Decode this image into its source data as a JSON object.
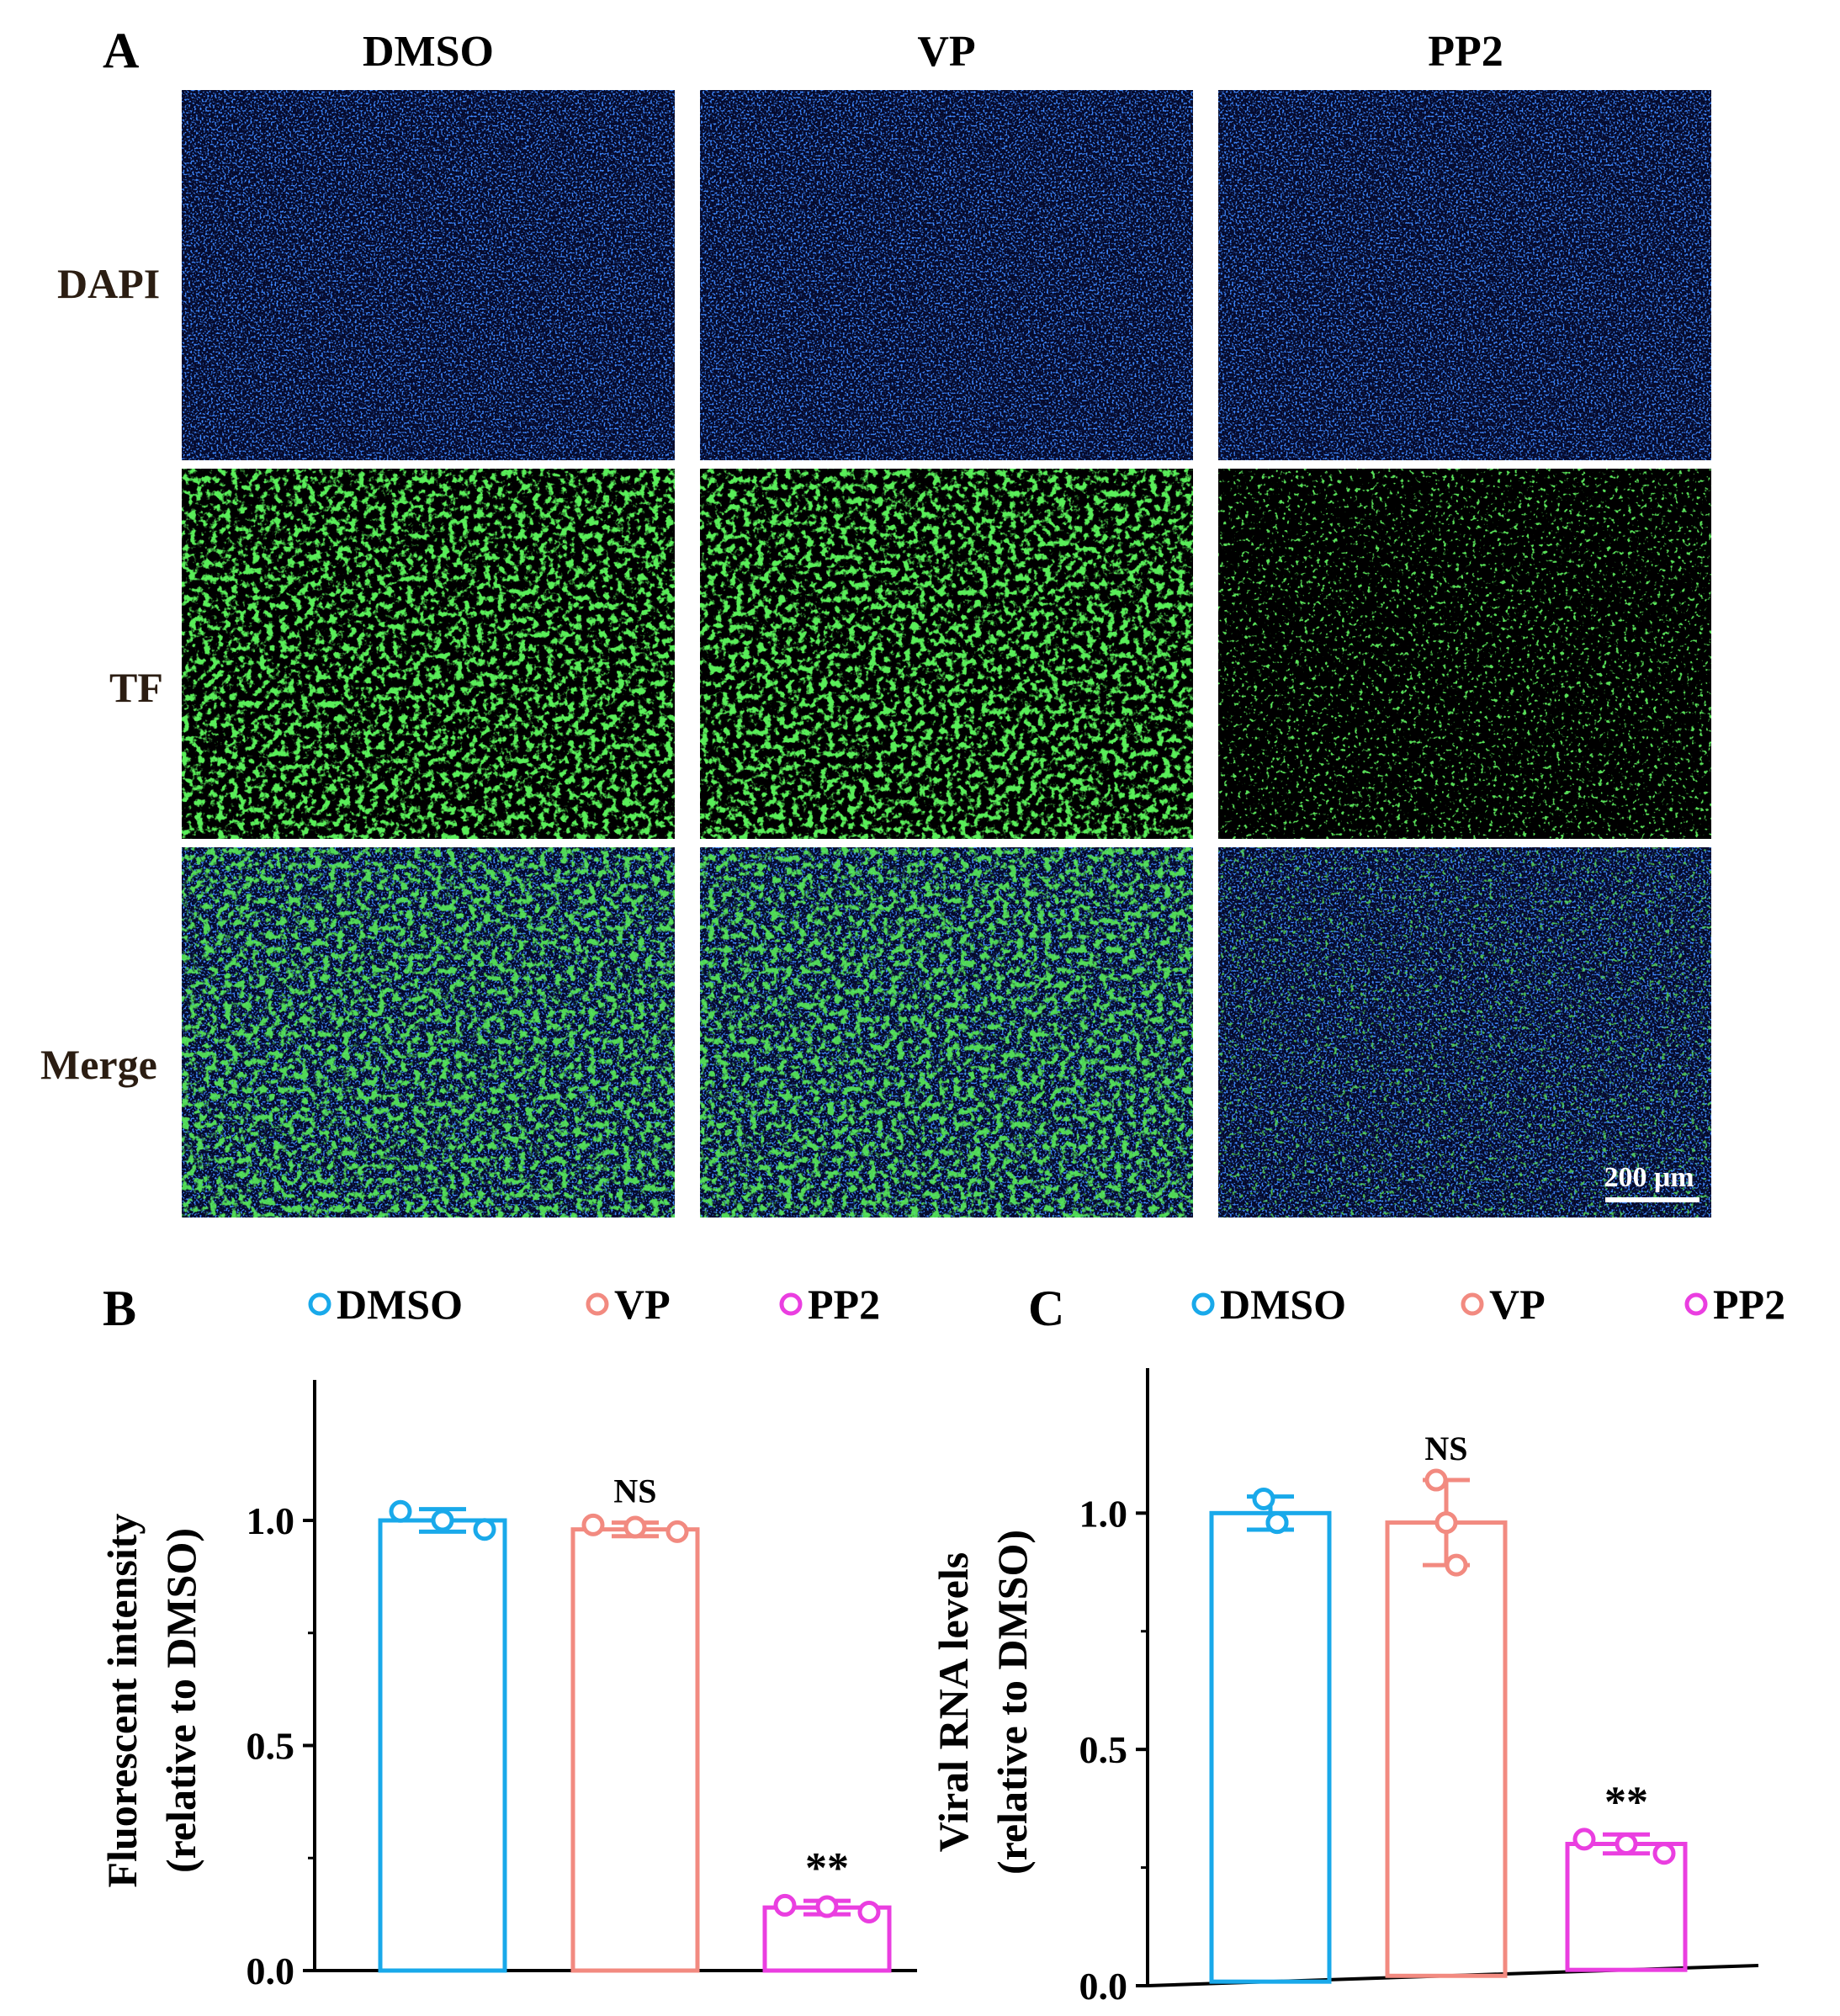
{
  "figure": {
    "panel_a": {
      "letter": "A",
      "columns": [
        "DMSO",
        "VP",
        "PP2"
      ],
      "rows": [
        "DAPI",
        "TF",
        "Merge"
      ],
      "scale_bar_label": "200 μm"
    },
    "colors": {
      "dmso": "#19a9ea",
      "vp": "#f28a80",
      "pp2": "#ea3ee0",
      "dapi_blue": "#1b3fd6",
      "tf_green": "#2fd32a"
    }
  },
  "chart_data": [
    {
      "panel": "B",
      "type": "bar",
      "categories": [
        "DMSO",
        "VP",
        "PP2"
      ],
      "values": [
        1.0,
        0.98,
        0.14
      ],
      "errors": [
        0.025,
        0.015,
        0.015
      ],
      "points": [
        [
          1.02,
          1.0,
          0.98
        ],
        [
          0.99,
          0.985,
          0.975
        ],
        [
          0.145,
          0.142,
          0.13
        ]
      ],
      "significance": [
        "",
        "NS",
        "**"
      ],
      "legend": [
        "DMSO",
        "VP",
        "PP2"
      ],
      "legend_position": "top",
      "ylabel_line1": "Fluorescent intensity",
      "ylabel_line2": "(relative to DMSO)",
      "xlabel": "",
      "ylim": [
        0,
        1.2
      ],
      "yticks": [
        "0.0",
        "0.5",
        "1.0"
      ],
      "grid": false
    },
    {
      "panel": "C",
      "type": "bar",
      "categories": [
        "DMSO",
        "VP",
        "PP2"
      ],
      "values": [
        1.0,
        0.98,
        0.3
      ],
      "errors": [
        0.035,
        0.09,
        0.02
      ],
      "points": [
        [
          1.03,
          0.98,
          0.98
        ],
        [
          1.07,
          0.98,
          0.89
        ],
        [
          0.31,
          0.3,
          0.28
        ]
      ],
      "significance": [
        "",
        "NS",
        "**"
      ],
      "legend": [
        "DMSO",
        "VP",
        "PP2"
      ],
      "legend_position": "top",
      "ylabel_line1": "Viral RNA levels",
      "ylabel_line2": "(relative to DMSO)",
      "xlabel": "",
      "ylim": [
        0,
        1.2
      ],
      "yticks": [
        "0.0",
        "0.5",
        "1.0"
      ],
      "grid": false
    }
  ]
}
